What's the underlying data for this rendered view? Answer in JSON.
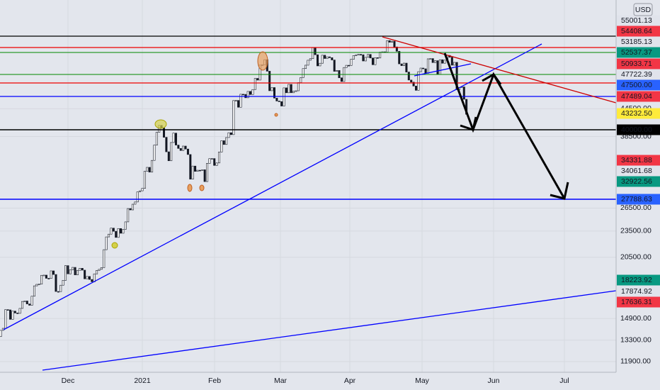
{
  "chart_data": {
    "type": "candlestick",
    "currency": "USD",
    "log_scale": true,
    "grid": true,
    "up_color": "#ffffff",
    "down_color": "#131722",
    "ylim": [
      11250,
      78500
    ],
    "yticks": [
      {
        "value": 11900,
        "label": "11900.00"
      },
      {
        "value": 13300,
        "label": "13300.00"
      },
      {
        "value": 14900,
        "label": "14900.00"
      },
      {
        "value": 20500,
        "label": "20500.00"
      },
      {
        "value": 23500,
        "label": "23500.00"
      },
      {
        "value": 26500,
        "label": "26500.00"
      },
      {
        "value": 38500,
        "label": "38500.00"
      },
      {
        "value": 44500,
        "label": "44500.00"
      }
    ],
    "x_labels": [
      "Dec",
      "2021",
      "Feb",
      "Mar",
      "Apr",
      "May",
      "Jun",
      "Jul"
    ],
    "price_labels": [
      {
        "value": 55001.13,
        "label": "55001.13",
        "color": "#e0e3eb"
      },
      {
        "value": 54408.64,
        "label": "54408.64",
        "color": "#f23645"
      },
      {
        "value": 53185.13,
        "label": "53185.13",
        "color": "#e0e3eb"
      },
      {
        "value": 52537.37,
        "label": "52537.37",
        "color": "#089981"
      },
      {
        "value": 50933.71,
        "label": "50933.71",
        "color": "#f23645"
      },
      {
        "value": 47722.39,
        "label": "47722.39",
        "color": "#e0e3eb"
      },
      {
        "value": 47500,
        "label": "47500.00",
        "color": "#2962ff"
      },
      {
        "value": 47489.04,
        "label": "47489.04",
        "color": "#f23645"
      },
      {
        "value": 43232.5,
        "label": "43232.50",
        "color": "#ffeb3b"
      },
      {
        "value": 40000,
        "label": "40000.00",
        "color": "#000000"
      },
      {
        "value": 34331.88,
        "label": "34331.88",
        "color": "#f23645"
      },
      {
        "value": 34061.68,
        "label": "34061.68",
        "color": "#e0e3eb"
      },
      {
        "value": 32922.56,
        "label": "32922.56",
        "color": "#089981"
      },
      {
        "value": 27788.63,
        "label": "27788.63",
        "color": "#2962ff"
      },
      {
        "value": 18223.92,
        "label": "18223.92",
        "color": "#089981"
      },
      {
        "value": 17874.92,
        "label": "17874.92",
        "color": "#e0e3eb"
      },
      {
        "value": 17636.31,
        "label": "17636.31",
        "color": "#f23645"
      }
    ],
    "close": [
      13550,
      14000,
      14150,
      15600,
      15580,
      14830,
      15480,
      15330,
      15300,
      15700,
      16280,
      16320,
      16070,
      15960,
      16730,
      17660,
      17800,
      17820,
      18660,
      18680,
      18370,
      18360,
      19100,
      18740,
      17150,
      17140,
      17720,
      18180,
      19630,
      18800,
      19200,
      19450,
      18700,
      19150,
      19360,
      19170,
      18320,
      18550,
      18260,
      18040,
      18800,
      19140,
      19250,
      19430,
      21330,
      22800,
      23130,
      23870,
      23480,
      22740,
      23820,
      23240,
      23730,
      24660,
      26440,
      26250,
      27040,
      27360,
      28840,
      29000,
      29370,
      32130,
      32780,
      31970,
      33990,
      36820,
      39370,
      40800,
      40250,
      38350,
      35550,
      33920,
      37320,
      39190,
      36820,
      36180,
      35790,
      36630,
      36070,
      35050,
      30820,
      33000,
      32100,
      32290,
      32270,
      32370,
      30430,
      33470,
      34300,
      34320,
      33110,
      33540,
      35510,
      37670,
      36930,
      38300,
      39270,
      38880,
      46450,
      46480,
      44850,
      48010,
      47970,
      47130,
      48720,
      47940,
      49200,
      52150,
      51680,
      55890,
      56000,
      57490,
      54140,
      48890,
      49710,
      47050,
      46340,
      46190,
      45140,
      49630,
      48380,
      50540,
      48380,
      48760,
      48880,
      51000,
      52370,
      54880,
      55860,
      57330,
      57800,
      61200,
      59000,
      55650,
      56430,
      58850,
      57850,
      58350,
      58100,
      57400,
      54100,
      54340,
      52300,
      51300,
      55190,
      55830,
      55780,
      57630,
      58750,
      58920,
      59100,
      59000,
      57100,
      58200,
      59100,
      58000,
      56000,
      58100,
      58000,
      59800,
      59900,
      59800,
      63500,
      62970,
      63310,
      61450,
      60060,
      56250,
      55720,
      56470,
      53900,
      51700,
      51140,
      50100,
      49000,
      54000,
      55030,
      54820,
      53560,
      57750,
      57830,
      56630,
      57200,
      53240,
      57480,
      56430,
      57360,
      58800,
      58230,
      55860,
      56700,
      49150,
      49710,
      49880,
      46760,
      43232.5
    ]
  }
}
